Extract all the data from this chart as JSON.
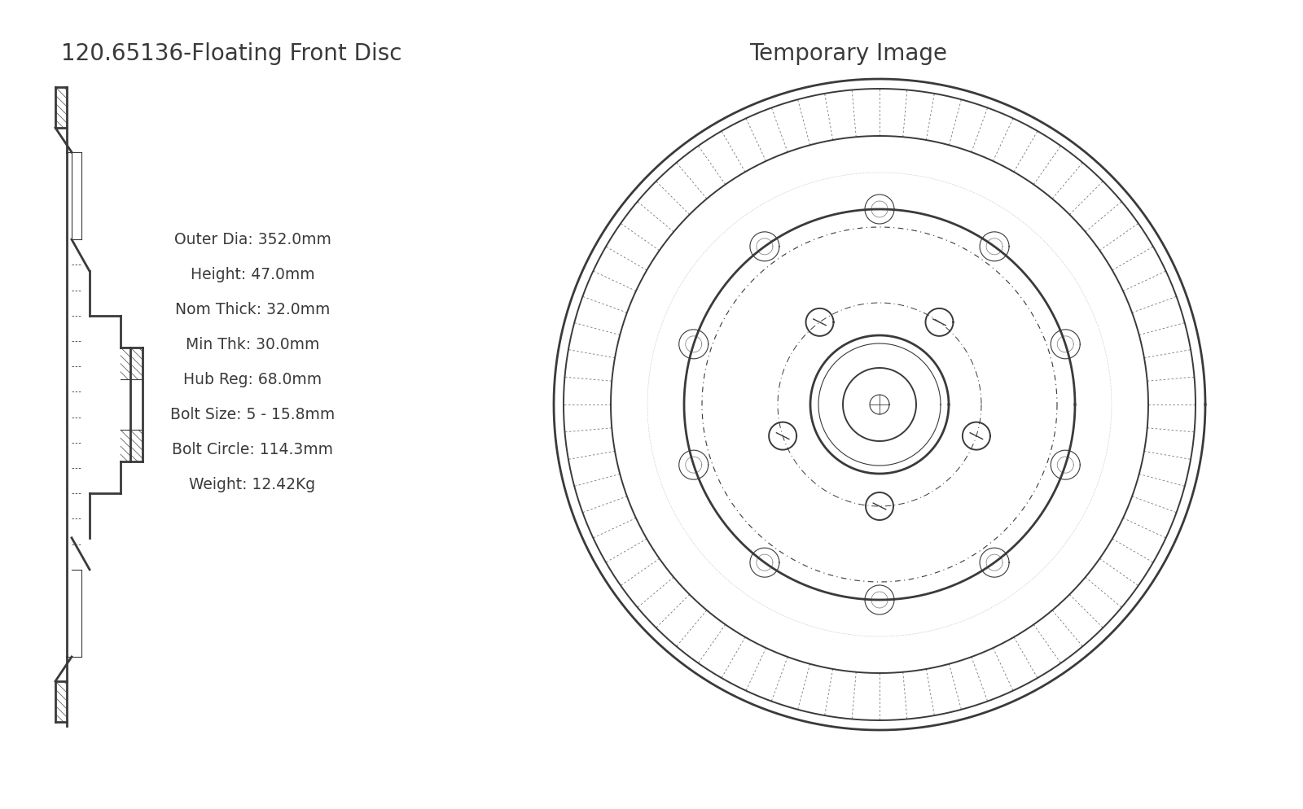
{
  "title_left": "120.65136-Floating Front Disc",
  "title_right": "Temporary Image",
  "specs": [
    "Outer Dia: 352.0mm",
    "Height: 47.0mm",
    "Nom Thick: 32.0mm",
    "Min Thk: 30.0mm",
    "Hub Reg: 68.0mm",
    "Bolt Size: 5 - 15.8mm",
    "Bolt Circle: 114.3mm",
    "Weight: 12.42Kg"
  ],
  "bg_color": "#ffffff",
  "line_color": "#3a3a3a",
  "title_fontsize": 20,
  "spec_fontsize": 13.5,
  "n_bolts": 5,
  "n_lugs": 10,
  "n_vents": 72
}
